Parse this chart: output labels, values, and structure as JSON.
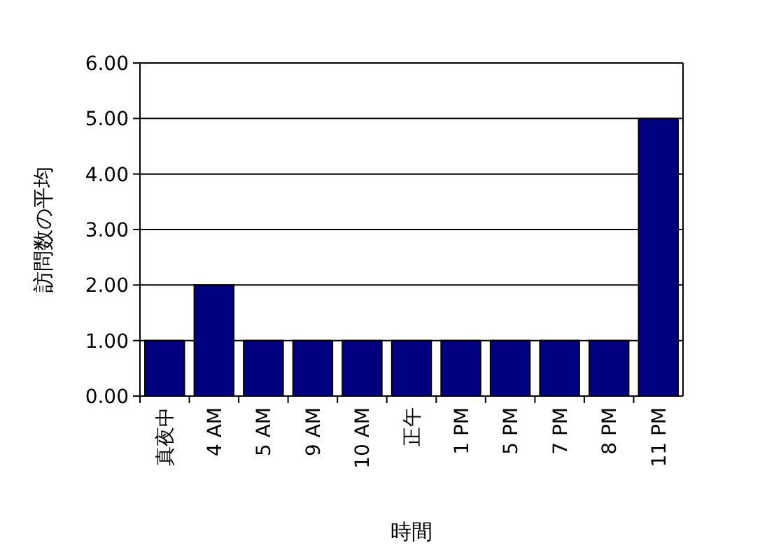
{
  "chart_data": {
    "type": "bar",
    "xlabel": "時間",
    "ylabel": "訪問数の平均",
    "categories": [
      "真夜中",
      "4 AM",
      "5 AM",
      "9 AM",
      "10 AM",
      "正午",
      "1 PM",
      "5 PM",
      "7 PM",
      "8 PM",
      "11 PM"
    ],
    "values": [
      1,
      2,
      1,
      1,
      1,
      1,
      1,
      1,
      1,
      1,
      5
    ],
    "color": "#000080",
    "ylim": [
      0,
      6
    ],
    "yticks": [
      {
        "value": 0,
        "label": "0.00"
      },
      {
        "value": 1,
        "label": "1.00"
      },
      {
        "value": 2,
        "label": "2.00"
      },
      {
        "value": 3,
        "label": "3.00"
      },
      {
        "value": 4,
        "label": "4.00"
      },
      {
        "value": 5,
        "label": "5.00"
      },
      {
        "value": 6,
        "label": "6.00"
      }
    ],
    "grid": "y"
  }
}
